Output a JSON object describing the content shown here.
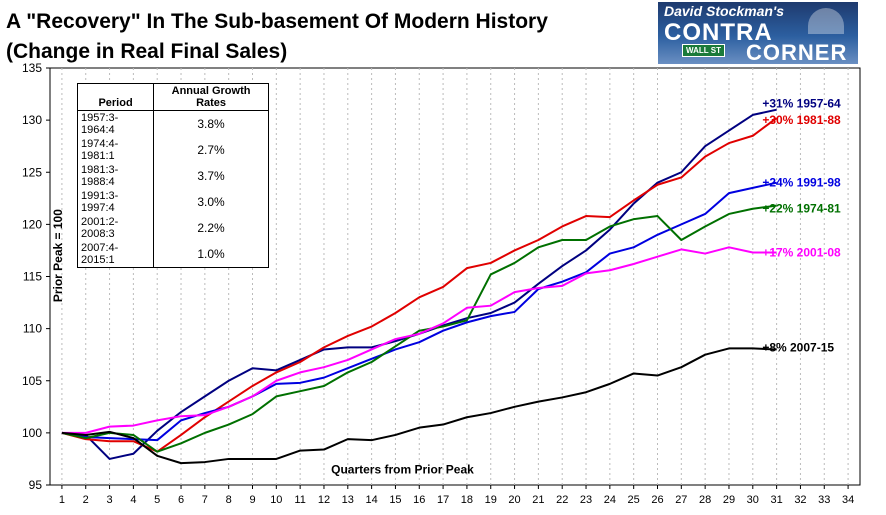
{
  "title_line1": "A \"Recovery\" In The Sub-basement Of Modern History",
  "title_line2": "(Change in Real Final Sales)",
  "logo": {
    "line1": "David Stockman's",
    "line2": "CONTRA",
    "line3": "CORNER",
    "sign": "WALL ST"
  },
  "table": {
    "header_period": "Period",
    "header_rates": "Annual Growth Rates",
    "rows": [
      {
        "period": "1957:3-1964:4",
        "rate": "3.8%"
      },
      {
        "period": "1974:4-1981:1",
        "rate": "2.7%"
      },
      {
        "period": "1981:3-1988:4",
        "rate": "3.7%"
      },
      {
        "period": "1991:3-1997:4",
        "rate": "3.0%"
      },
      {
        "period": "2001:2-2008:3",
        "rate": "2.2%"
      },
      {
        "period": "2007:4-2015:1",
        "rate": "1.0%"
      }
    ]
  },
  "chart_data": {
    "type": "line",
    "title": "A \"Recovery\" In The Sub-basement Of Modern History",
    "subtitle": "(Change in Real Final Sales)",
    "xlabel": "Quarters from Prior Peak",
    "ylabel": "Prior Peak = 100",
    "xlim": [
      1,
      34
    ],
    "ylim": [
      95,
      135
    ],
    "x_ticks": [
      1,
      2,
      3,
      4,
      5,
      6,
      7,
      8,
      9,
      10,
      11,
      12,
      13,
      14,
      15,
      16,
      17,
      18,
      19,
      20,
      21,
      22,
      23,
      24,
      25,
      26,
      27,
      28,
      29,
      30,
      31,
      32,
      33,
      34
    ],
    "y_ticks": [
      95,
      100,
      105,
      110,
      115,
      120,
      125,
      130,
      135
    ],
    "grid": "vertical dashed",
    "background": "#ffffff",
    "series": [
      {
        "name": "+31% 1957-64",
        "color": "#000080",
        "values": [
          100,
          99.8,
          97.5,
          98.0,
          100.2,
          102.0,
          103.5,
          105.0,
          106.2,
          106.0,
          107.0,
          108.0,
          108.2,
          108.2,
          108.8,
          109.5,
          110.3,
          111.0,
          111.5,
          112.5,
          114.3,
          116.0,
          117.5,
          119.5,
          122.0,
          124.0,
          125.0,
          127.5,
          129.0,
          130.5,
          131.0
        ]
      },
      {
        "name": "+30% 1981-88",
        "color": "#e00000",
        "values": [
          100,
          99.4,
          99.2,
          99.2,
          98.2,
          99.8,
          101.5,
          103.0,
          104.5,
          105.8,
          106.8,
          108.2,
          109.3,
          110.2,
          111.5,
          113.0,
          114.0,
          115.8,
          116.3,
          117.5,
          118.5,
          119.8,
          120.8,
          120.7,
          122.3,
          123.8,
          124.5,
          126.5,
          127.8,
          128.5,
          130.2
        ]
      },
      {
        "name": "+24% 1991-98",
        "color": "#0000e0",
        "values": [
          100,
          99.6,
          99.5,
          99.4,
          99.3,
          101.2,
          101.9,
          102.5,
          103.5,
          104.7,
          104.8,
          105.3,
          106.2,
          107.1,
          108.0,
          108.7,
          109.8,
          110.6,
          111.2,
          111.6,
          113.8,
          114.5,
          115.4,
          117.2,
          117.8,
          119.0,
          120.0,
          121.0,
          123.0,
          123.5,
          124.0
        ]
      },
      {
        "name": "+22% 1974-81",
        "color": "#007000",
        "values": [
          100,
          99.5,
          100.0,
          99.8,
          98.2,
          99.0,
          100.0,
          100.8,
          101.8,
          103.5,
          104.0,
          104.5,
          105.8,
          106.8,
          108.3,
          109.8,
          110.2,
          110.8,
          115.2,
          116.3,
          117.8,
          118.5,
          118.5,
          119.8,
          120.5,
          120.8,
          118.5,
          119.8,
          121.0,
          121.5,
          121.8
        ]
      },
      {
        "name": "+17% 2001-08",
        "color": "#ff00ff",
        "values": [
          100,
          100.0,
          100.6,
          100.7,
          101.2,
          101.6,
          101.7,
          102.5,
          103.5,
          105.0,
          105.8,
          106.3,
          107.0,
          108.0,
          109.0,
          109.5,
          110.5,
          112.0,
          112.2,
          113.5,
          113.9,
          114.1,
          115.3,
          115.6,
          116.2,
          116.9,
          117.6,
          117.2,
          117.8,
          117.3,
          117.3
        ]
      },
      {
        "name": "+8% 2007-15",
        "color": "#000000",
        "values": [
          100,
          99.8,
          100.1,
          99.5,
          97.8,
          97.1,
          97.2,
          97.5,
          97.5,
          97.5,
          98.3,
          98.4,
          99.4,
          99.3,
          99.8,
          100.5,
          100.8,
          101.5,
          101.9,
          102.5,
          103.0,
          103.4,
          103.9,
          104.7,
          105.7,
          105.5,
          106.3,
          107.5,
          108.1,
          108.1,
          108.0
        ]
      }
    ]
  }
}
